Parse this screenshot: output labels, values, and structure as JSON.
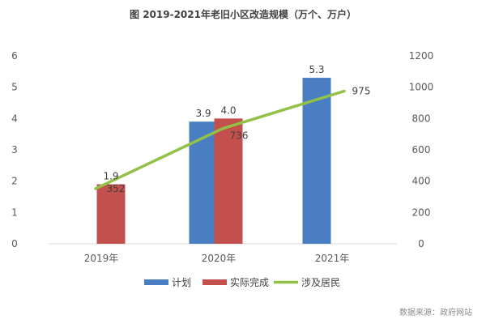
{
  "chart_data": {
    "type": "bar",
    "title": "图 2019-2021年老旧小区改造规模（万个、万户）",
    "categories": [
      "2019年",
      "2020年",
      "2021年"
    ],
    "series": [
      {
        "name": "计划",
        "type": "bar",
        "axis": "left",
        "color": "#4a7ec2",
        "values": [
          null,
          3.9,
          5.3
        ],
        "labels": [
          "",
          "3.9",
          "5.3"
        ]
      },
      {
        "name": "实际完成",
        "type": "bar",
        "axis": "left",
        "color": "#c3504c",
        "values": [
          1.9,
          4.0,
          null
        ],
        "labels": [
          "1.9",
          "4.0",
          ""
        ]
      },
      {
        "name": "涉及居民",
        "type": "line",
        "axis": "right",
        "color": "#93c047",
        "values": [
          352,
          736,
          975
        ],
        "labels": [
          "352",
          "736",
          "975"
        ]
      }
    ],
    "y_left": {
      "min": 0,
      "max": 6,
      "ticks": [
        "0",
        "1",
        "2",
        "3",
        "4",
        "5",
        "6"
      ]
    },
    "y_right": {
      "min": 0,
      "max": 1200,
      "ticks": [
        "0",
        "200",
        "400",
        "600",
        "800",
        "1000",
        "1200"
      ]
    },
    "legend_position": "bottom",
    "grid": false,
    "source": "数据来源：政府网站"
  }
}
